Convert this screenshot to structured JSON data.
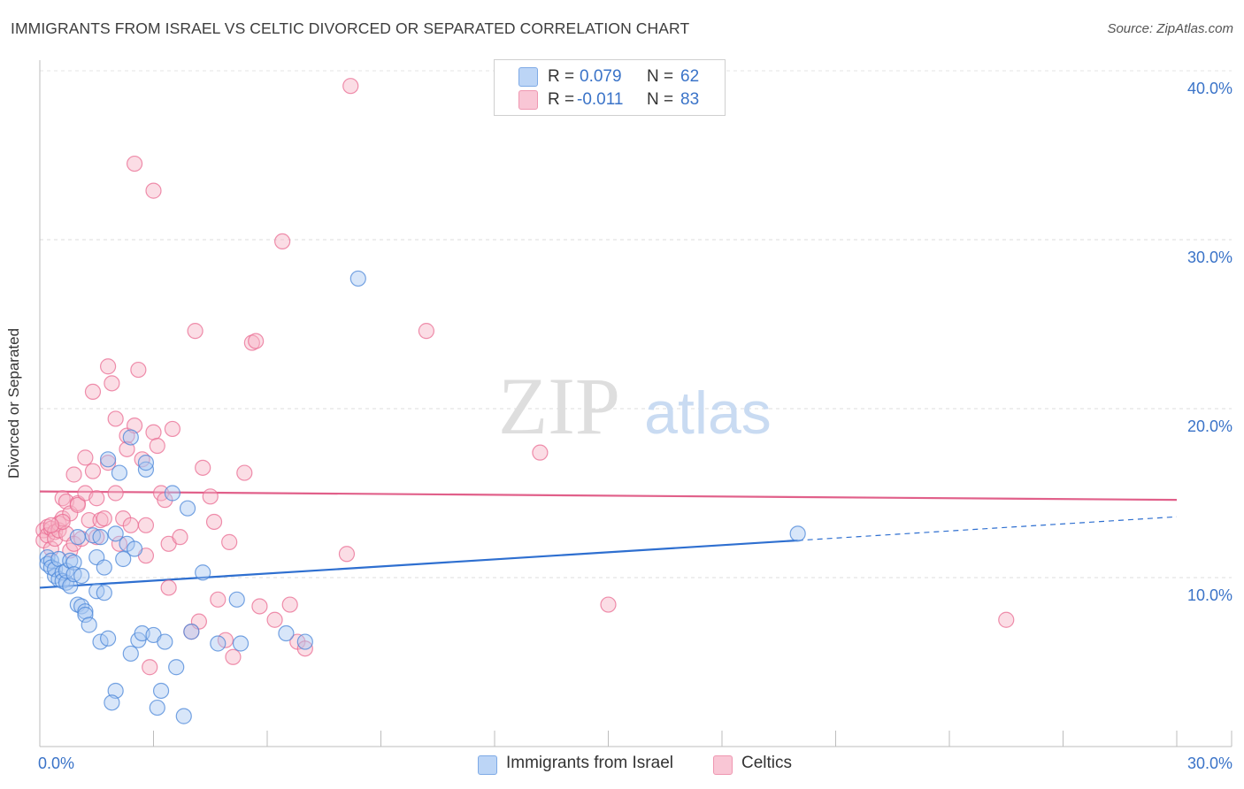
{
  "header": {
    "title": "IMMIGRANTS FROM ISRAEL VS CELTIC DIVORCED OR SEPARATED CORRELATION CHART",
    "source": "Source: ZipAtlas.com"
  },
  "watermark": {
    "zip": "ZIP",
    "atlas": "atlas"
  },
  "legend_top": [
    {
      "r_label": "R =",
      "r_value": "0.079",
      "n_label": "N =",
      "n_value": "62",
      "color": "#9bbff0"
    },
    {
      "r_label": "R =",
      "r_value": "-0.011",
      "n_label": "N =",
      "n_value": "83",
      "color": "#f6a9c0"
    }
  ],
  "legend_bottom": [
    {
      "label": "Immigrants from Israel",
      "color": "#9bbff0"
    },
    {
      "label": "Celtics",
      "color": "#f6a9c0"
    }
  ],
  "chart_data": {
    "type": "scatter",
    "title": "IMMIGRANTS FROM ISRAEL VS CELTIC DIVORCED OR SEPARATED CORRELATION CHART",
    "xlabel": "",
    "ylabel": "Divorced or Separated",
    "xlim": [
      0,
      30
    ],
    "ylim": [
      0,
      40
    ],
    "x_tick_labels": [
      "0.0%",
      "30.0%"
    ],
    "y_tick_labels": [
      "10.0%",
      "20.0%",
      "30.0%",
      "40.0%"
    ],
    "y_ticks": [
      10,
      20,
      30,
      40
    ],
    "grid": true,
    "legend_position": "top-center",
    "series": [
      {
        "name": "Immigrants from Israel",
        "color": "#4a86d8",
        "fill": "#a9c8f2",
        "trend": {
          "x0": 0,
          "y0": 9.4,
          "x1": 20.0,
          "y1": 12.2,
          "dashed_to_x": 30,
          "dashed_to_y": 13.6
        },
        "points": [
          [
            0.2,
            11.2
          ],
          [
            0.2,
            10.8
          ],
          [
            0.3,
            11.0
          ],
          [
            0.3,
            10.6
          ],
          [
            0.4,
            10.1
          ],
          [
            0.4,
            10.5
          ],
          [
            0.5,
            9.9
          ],
          [
            0.5,
            11.1
          ],
          [
            0.6,
            10.3
          ],
          [
            0.6,
            9.8
          ],
          [
            0.7,
            9.7
          ],
          [
            0.7,
            10.4
          ],
          [
            0.8,
            11.0
          ],
          [
            0.8,
            9.5
          ],
          [
            0.9,
            10.9
          ],
          [
            0.9,
            10.2
          ],
          [
            1.0,
            12.4
          ],
          [
            1.0,
            8.4
          ],
          [
            1.1,
            8.3
          ],
          [
            1.1,
            10.1
          ],
          [
            1.2,
            8.0
          ],
          [
            1.2,
            7.8
          ],
          [
            1.3,
            7.2
          ],
          [
            1.4,
            12.5
          ],
          [
            1.5,
            11.2
          ],
          [
            1.5,
            9.2
          ],
          [
            1.6,
            12.4
          ],
          [
            1.6,
            6.2
          ],
          [
            1.7,
            10.6
          ],
          [
            1.7,
            9.1
          ],
          [
            1.8,
            17.0
          ],
          [
            1.8,
            6.4
          ],
          [
            2.0,
            3.3
          ],
          [
            2.0,
            12.6
          ],
          [
            2.1,
            16.2
          ],
          [
            2.2,
            11.1
          ],
          [
            2.3,
            12.0
          ],
          [
            2.4,
            18.3
          ],
          [
            2.4,
            5.5
          ],
          [
            2.5,
            11.7
          ],
          [
            2.6,
            6.3
          ],
          [
            2.7,
            6.7
          ],
          [
            2.8,
            16.4
          ],
          [
            2.8,
            16.8
          ],
          [
            3.0,
            6.6
          ],
          [
            3.1,
            2.3
          ],
          [
            3.2,
            3.3
          ],
          [
            3.3,
            6.2
          ],
          [
            3.5,
            15.0
          ],
          [
            3.6,
            4.7
          ],
          [
            3.8,
            1.8
          ],
          [
            3.9,
            14.1
          ],
          [
            4.0,
            6.8
          ],
          [
            4.3,
            10.3
          ],
          [
            4.7,
            6.1
          ],
          [
            5.2,
            8.7
          ],
          [
            5.3,
            6.1
          ],
          [
            6.5,
            6.7
          ],
          [
            7.0,
            6.2
          ],
          [
            8.4,
            27.7
          ],
          [
            1.9,
            2.6
          ],
          [
            20.0,
            12.6
          ]
        ]
      },
      {
        "name": "Celtics",
        "color": "#e96b92",
        "fill": "#f7b3c6",
        "trend": {
          "x0": 0,
          "y0": 15.1,
          "x1": 30,
          "y1": 14.6
        },
        "points": [
          [
            0.1,
            12.8
          ],
          [
            0.1,
            12.2
          ],
          [
            0.2,
            13.0
          ],
          [
            0.2,
            12.5
          ],
          [
            0.3,
            12.9
          ],
          [
            0.3,
            11.7
          ],
          [
            0.4,
            12.7
          ],
          [
            0.4,
            12.3
          ],
          [
            0.5,
            13.2
          ],
          [
            0.5,
            12.8
          ],
          [
            0.6,
            14.7
          ],
          [
            0.6,
            13.5
          ],
          [
            0.7,
            12.6
          ],
          [
            0.7,
            14.5
          ],
          [
            0.8,
            13.8
          ],
          [
            0.8,
            11.6
          ],
          [
            0.9,
            16.1
          ],
          [
            0.9,
            12.0
          ],
          [
            1.0,
            14.4
          ],
          [
            1.0,
            14.3
          ],
          [
            1.1,
            12.3
          ],
          [
            1.2,
            15.0
          ],
          [
            1.2,
            17.1
          ],
          [
            1.3,
            13.4
          ],
          [
            1.4,
            16.3
          ],
          [
            1.4,
            21.0
          ],
          [
            1.5,
            12.4
          ],
          [
            1.6,
            13.4
          ],
          [
            1.7,
            13.5
          ],
          [
            1.8,
            16.8
          ],
          [
            1.8,
            22.5
          ],
          [
            1.9,
            21.5
          ],
          [
            2.0,
            19.4
          ],
          [
            2.0,
            15.0
          ],
          [
            2.1,
            12.0
          ],
          [
            2.2,
            13.5
          ],
          [
            2.3,
            18.4
          ],
          [
            2.3,
            17.6
          ],
          [
            2.4,
            13.1
          ],
          [
            2.5,
            19.0
          ],
          [
            2.6,
            22.3
          ],
          [
            2.7,
            17.0
          ],
          [
            2.8,
            13.1
          ],
          [
            3.0,
            18.6
          ],
          [
            3.1,
            17.8
          ],
          [
            3.2,
            15.0
          ],
          [
            3.3,
            14.6
          ],
          [
            3.4,
            12.0
          ],
          [
            3.5,
            18.8
          ],
          [
            3.7,
            12.4
          ],
          [
            4.0,
            6.8
          ],
          [
            4.1,
            24.6
          ],
          [
            4.2,
            7.4
          ],
          [
            4.3,
            16.5
          ],
          [
            4.5,
            14.8
          ],
          [
            4.6,
            13.3
          ],
          [
            4.7,
            8.7
          ],
          [
            4.9,
            6.3
          ],
          [
            5.0,
            12.1
          ],
          [
            5.1,
            5.3
          ],
          [
            5.4,
            16.2
          ],
          [
            5.6,
            23.9
          ],
          [
            5.7,
            24.0
          ],
          [
            5.8,
            8.3
          ],
          [
            6.2,
            7.5
          ],
          [
            6.4,
            29.9
          ],
          [
            6.6,
            8.4
          ],
          [
            6.8,
            6.2
          ],
          [
            7.0,
            5.8
          ],
          [
            8.1,
            11.4
          ],
          [
            8.2,
            39.1
          ],
          [
            10.2,
            24.6
          ],
          [
            13.2,
            17.4
          ],
          [
            15.0,
            8.4
          ],
          [
            25.5,
            7.5
          ],
          [
            2.5,
            34.5
          ],
          [
            3.0,
            32.9
          ],
          [
            0.6,
            13.3
          ],
          [
            0.3,
            13.1
          ],
          [
            2.8,
            11.3
          ],
          [
            3.4,
            9.4
          ],
          [
            2.9,
            4.7
          ],
          [
            1.5,
            14.7
          ]
        ]
      }
    ]
  }
}
